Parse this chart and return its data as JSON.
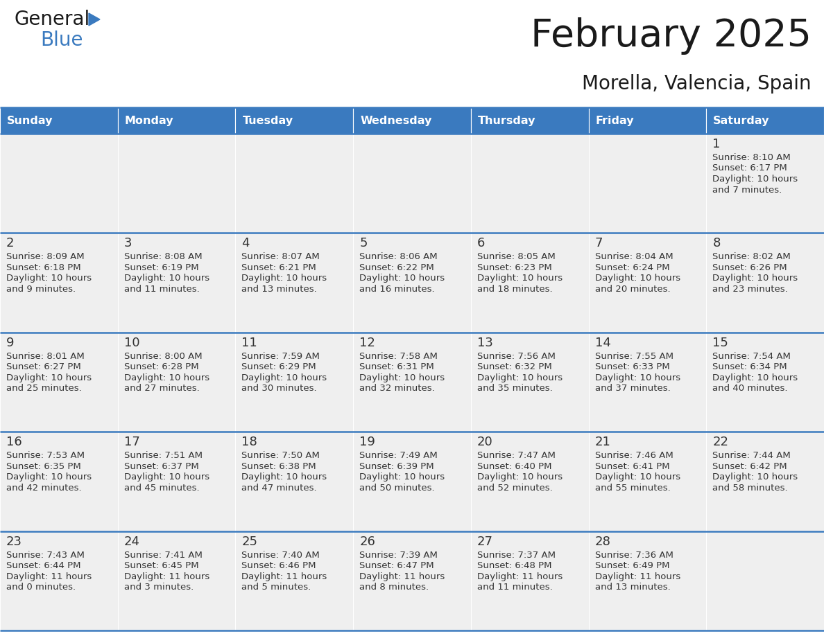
{
  "title": "February 2025",
  "subtitle": "Morella, Valencia, Spain",
  "header_bg": "#3a7abf",
  "header_text": "#ffffff",
  "cell_bg": "#efefef",
  "line_color": "#3a7abf",
  "text_color": "#333333",
  "day_names": [
    "Sunday",
    "Monday",
    "Tuesday",
    "Wednesday",
    "Thursday",
    "Friday",
    "Saturday"
  ],
  "days": [
    {
      "day": 1,
      "col": 6,
      "row": 0,
      "sunrise": "8:10 AM",
      "sunset": "6:17 PM",
      "daylight": "10 hours",
      "daylight2": "and 7 minutes."
    },
    {
      "day": 2,
      "col": 0,
      "row": 1,
      "sunrise": "8:09 AM",
      "sunset": "6:18 PM",
      "daylight": "10 hours",
      "daylight2": "and 9 minutes."
    },
    {
      "day": 3,
      "col": 1,
      "row": 1,
      "sunrise": "8:08 AM",
      "sunset": "6:19 PM",
      "daylight": "10 hours",
      "daylight2": "and 11 minutes."
    },
    {
      "day": 4,
      "col": 2,
      "row": 1,
      "sunrise": "8:07 AM",
      "sunset": "6:21 PM",
      "daylight": "10 hours",
      "daylight2": "and 13 minutes."
    },
    {
      "day": 5,
      "col": 3,
      "row": 1,
      "sunrise": "8:06 AM",
      "sunset": "6:22 PM",
      "daylight": "10 hours",
      "daylight2": "and 16 minutes."
    },
    {
      "day": 6,
      "col": 4,
      "row": 1,
      "sunrise": "8:05 AM",
      "sunset": "6:23 PM",
      "daylight": "10 hours",
      "daylight2": "and 18 minutes."
    },
    {
      "day": 7,
      "col": 5,
      "row": 1,
      "sunrise": "8:04 AM",
      "sunset": "6:24 PM",
      "daylight": "10 hours",
      "daylight2": "and 20 minutes."
    },
    {
      "day": 8,
      "col": 6,
      "row": 1,
      "sunrise": "8:02 AM",
      "sunset": "6:26 PM",
      "daylight": "10 hours",
      "daylight2": "and 23 minutes."
    },
    {
      "day": 9,
      "col": 0,
      "row": 2,
      "sunrise": "8:01 AM",
      "sunset": "6:27 PM",
      "daylight": "10 hours",
      "daylight2": "and 25 minutes."
    },
    {
      "day": 10,
      "col": 1,
      "row": 2,
      "sunrise": "8:00 AM",
      "sunset": "6:28 PM",
      "daylight": "10 hours",
      "daylight2": "and 27 minutes."
    },
    {
      "day": 11,
      "col": 2,
      "row": 2,
      "sunrise": "7:59 AM",
      "sunset": "6:29 PM",
      "daylight": "10 hours",
      "daylight2": "and 30 minutes."
    },
    {
      "day": 12,
      "col": 3,
      "row": 2,
      "sunrise": "7:58 AM",
      "sunset": "6:31 PM",
      "daylight": "10 hours",
      "daylight2": "and 32 minutes."
    },
    {
      "day": 13,
      "col": 4,
      "row": 2,
      "sunrise": "7:56 AM",
      "sunset": "6:32 PM",
      "daylight": "10 hours",
      "daylight2": "and 35 minutes."
    },
    {
      "day": 14,
      "col": 5,
      "row": 2,
      "sunrise": "7:55 AM",
      "sunset": "6:33 PM",
      "daylight": "10 hours",
      "daylight2": "and 37 minutes."
    },
    {
      "day": 15,
      "col": 6,
      "row": 2,
      "sunrise": "7:54 AM",
      "sunset": "6:34 PM",
      "daylight": "10 hours",
      "daylight2": "and 40 minutes."
    },
    {
      "day": 16,
      "col": 0,
      "row": 3,
      "sunrise": "7:53 AM",
      "sunset": "6:35 PM",
      "daylight": "10 hours",
      "daylight2": "and 42 minutes."
    },
    {
      "day": 17,
      "col": 1,
      "row": 3,
      "sunrise": "7:51 AM",
      "sunset": "6:37 PM",
      "daylight": "10 hours",
      "daylight2": "and 45 minutes."
    },
    {
      "day": 18,
      "col": 2,
      "row": 3,
      "sunrise": "7:50 AM",
      "sunset": "6:38 PM",
      "daylight": "10 hours",
      "daylight2": "and 47 minutes."
    },
    {
      "day": 19,
      "col": 3,
      "row": 3,
      "sunrise": "7:49 AM",
      "sunset": "6:39 PM",
      "daylight": "10 hours",
      "daylight2": "and 50 minutes."
    },
    {
      "day": 20,
      "col": 4,
      "row": 3,
      "sunrise": "7:47 AM",
      "sunset": "6:40 PM",
      "daylight": "10 hours",
      "daylight2": "and 52 minutes."
    },
    {
      "day": 21,
      "col": 5,
      "row": 3,
      "sunrise": "7:46 AM",
      "sunset": "6:41 PM",
      "daylight": "10 hours",
      "daylight2": "and 55 minutes."
    },
    {
      "day": 22,
      "col": 6,
      "row": 3,
      "sunrise": "7:44 AM",
      "sunset": "6:42 PM",
      "daylight": "10 hours",
      "daylight2": "and 58 minutes."
    },
    {
      "day": 23,
      "col": 0,
      "row": 4,
      "sunrise": "7:43 AM",
      "sunset": "6:44 PM",
      "daylight": "11 hours",
      "daylight2": "and 0 minutes."
    },
    {
      "day": 24,
      "col": 1,
      "row": 4,
      "sunrise": "7:41 AM",
      "sunset": "6:45 PM",
      "daylight": "11 hours",
      "daylight2": "and 3 minutes."
    },
    {
      "day": 25,
      "col": 2,
      "row": 4,
      "sunrise": "7:40 AM",
      "sunset": "6:46 PM",
      "daylight": "11 hours",
      "daylight2": "and 5 minutes."
    },
    {
      "day": 26,
      "col": 3,
      "row": 4,
      "sunrise": "7:39 AM",
      "sunset": "6:47 PM",
      "daylight": "11 hours",
      "daylight2": "and 8 minutes."
    },
    {
      "day": 27,
      "col": 4,
      "row": 4,
      "sunrise": "7:37 AM",
      "sunset": "6:48 PM",
      "daylight": "11 hours",
      "daylight2": "and 11 minutes."
    },
    {
      "day": 28,
      "col": 5,
      "row": 4,
      "sunrise": "7:36 AM",
      "sunset": "6:49 PM",
      "daylight": "11 hours",
      "daylight2": "and 13 minutes."
    }
  ],
  "num_rows": 5,
  "num_cols": 7,
  "figw": 11.88,
  "figh": 9.18,
  "dpi": 100
}
